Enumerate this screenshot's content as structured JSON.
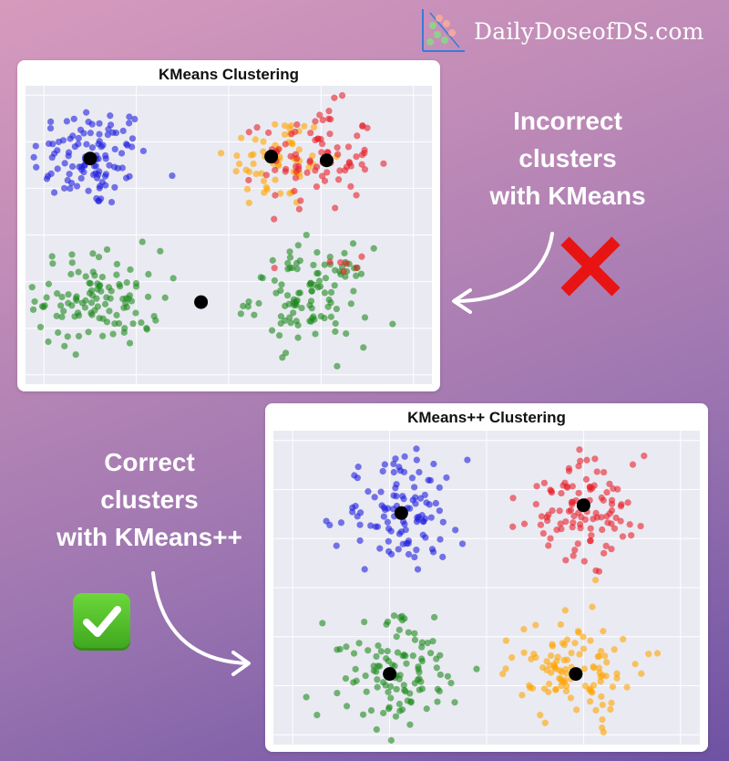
{
  "brand": {
    "name": "DailyDoseofDS.com"
  },
  "colors": {
    "blue": "#1f1fe0",
    "orange": "#ffa500",
    "red": "#e8202a",
    "green": "#1e8a1e",
    "centroid": "#000000",
    "plot_bg": "#eaeaf2",
    "grid": "#ffffff"
  },
  "captions": {
    "incorrect": [
      "Incorrect",
      "clusters",
      "with KMeans"
    ],
    "correct": [
      "Correct",
      "clusters",
      "with KMeans++"
    ]
  },
  "icons": {
    "incorrect": "red-cross-icon",
    "correct": "green-check-icon"
  },
  "chart_data": [
    {
      "type": "scatter",
      "title": "KMeans Clustering",
      "xlim": [
        -11,
        11
      ],
      "ylim": [
        -8,
        8
      ],
      "grid": true,
      "clusters": [
        {
          "color": "blue",
          "center": [
            -7.5,
            4.2
          ],
          "spread": [
            1.6,
            1.4
          ],
          "n": 110
        },
        {
          "color": "orange",
          "center": [
            2.6,
            4.0
          ],
          "spread": [
            1.4,
            1.3
          ],
          "n": 60
        },
        {
          "color": "red",
          "center": [
            4.8,
            4.1
          ],
          "spread": [
            1.5,
            1.4
          ],
          "n": 85
        },
        {
          "color": "green",
          "center": [
            -7.0,
            -3.4
          ],
          "spread": [
            1.7,
            1.3
          ],
          "n": 110
        },
        {
          "color": "green",
          "center": [
            4.4,
            -3.3
          ],
          "spread": [
            1.6,
            1.3
          ],
          "n": 110
        },
        {
          "color": "red",
          "center": [
            6.0,
            -1.6
          ],
          "spread": [
            1.6,
            0.4
          ],
          "n": 6
        }
      ],
      "centroids": [
        [
          -7.5,
          4.1
        ],
        [
          2.3,
          4.2
        ],
        [
          5.3,
          4.0
        ],
        [
          -1.5,
          -3.6
        ]
      ]
    },
    {
      "type": "scatter",
      "title": "KMeans++ Clustering",
      "xlim": [
        -11,
        11
      ],
      "ylim": [
        -8,
        8
      ],
      "grid": true,
      "clusters": [
        {
          "color": "blue",
          "center": [
            -4.5,
            3.8
          ],
          "spread": [
            1.6,
            1.4
          ],
          "n": 110
        },
        {
          "color": "red",
          "center": [
            5.0,
            4.0
          ],
          "spread": [
            1.6,
            1.3
          ],
          "n": 110
        },
        {
          "color": "green",
          "center": [
            -4.9,
            -4.3
          ],
          "spread": [
            1.7,
            1.4
          ],
          "n": 110
        },
        {
          "color": "orange",
          "center": [
            4.6,
            -4.2
          ],
          "spread": [
            1.6,
            1.3
          ],
          "n": 110
        }
      ],
      "centroids": [
        [
          -4.4,
          3.8
        ],
        [
          5.0,
          4.2
        ],
        [
          -5.0,
          -4.4
        ],
        [
          4.6,
          -4.4
        ]
      ]
    }
  ]
}
